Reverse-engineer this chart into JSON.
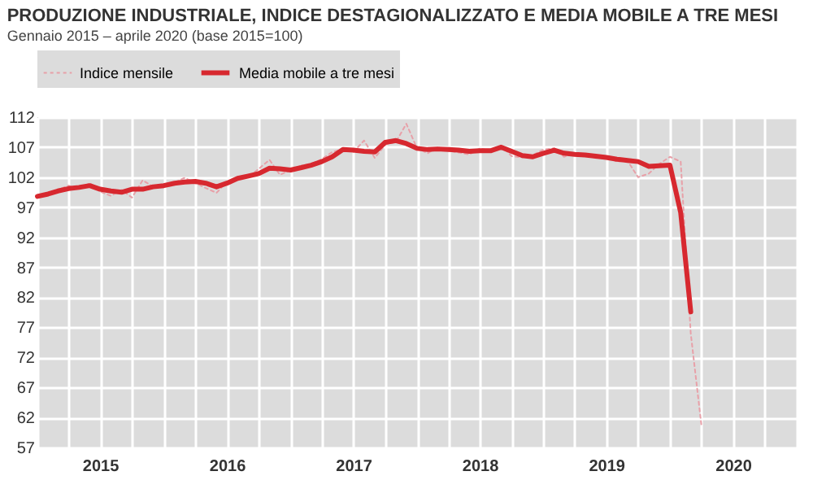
{
  "chart_data": {
    "type": "line",
    "title": "PRODUZIONE INDUSTRIALE, INDICE DESTAGIONALIZZATO E MEDIA MOBILE A TRE MESI",
    "subtitle": "Gennaio 2015 – aprile 2020 (base 2015=100)",
    "x": [
      "2015-01",
      "2015-02",
      "2015-03",
      "2015-04",
      "2015-05",
      "2015-06",
      "2015-07",
      "2015-08",
      "2015-09",
      "2015-10",
      "2015-11",
      "2015-12",
      "2016-01",
      "2016-02",
      "2016-03",
      "2016-04",
      "2016-05",
      "2016-06",
      "2016-07",
      "2016-08",
      "2016-09",
      "2016-10",
      "2016-11",
      "2016-12",
      "2017-01",
      "2017-02",
      "2017-03",
      "2017-04",
      "2017-05",
      "2017-06",
      "2017-07",
      "2017-08",
      "2017-09",
      "2017-10",
      "2017-11",
      "2017-12",
      "2018-01",
      "2018-02",
      "2018-03",
      "2018-04",
      "2018-05",
      "2018-06",
      "2018-07",
      "2018-08",
      "2018-09",
      "2018-10",
      "2018-11",
      "2018-12",
      "2019-01",
      "2019-02",
      "2019-03",
      "2019-04",
      "2019-05",
      "2019-06",
      "2019-07",
      "2019-08",
      "2019-09",
      "2019-10",
      "2019-11",
      "2019-12",
      "2020-01",
      "2020-02",
      "2020-03",
      "2020-04"
    ],
    "series": [
      {
        "name": "Indice mensile",
        "color": "#e8a0a8",
        "line_style": "dotted",
        "values": [
          98.6,
          99.3,
          99.9,
          100.6,
          100.0,
          101.0,
          99.6,
          98.9,
          99.9,
          98.6,
          101.5,
          100.4,
          100.8,
          101.1,
          101.9,
          101.0,
          100.2,
          99.4,
          101.2,
          102.0,
          102.0,
          103.4,
          104.9,
          102.4,
          103.2,
          103.9,
          104.2,
          105.0,
          106.2,
          106.7,
          106.2,
          108.1,
          105.2,
          107.4,
          107.9,
          110.9,
          106.8,
          106.0,
          107.0,
          106.4,
          106.1,
          105.8,
          106.8,
          106.4,
          107.3,
          105.5,
          105.3,
          105.7,
          106.6,
          106.8,
          105.4,
          105.9,
          105.6,
          105.2,
          105.4,
          104.6,
          104.7,
          102.0,
          102.6,
          104.2,
          105.4,
          104.6,
          76.0,
          60.6
        ]
      },
      {
        "name": "Media mobile a tre mesi",
        "color": "#d7282f",
        "line_style": "solid",
        "values": [
          98.8,
          99.2,
          99.7,
          100.1,
          100.3,
          100.6,
          100.0,
          99.7,
          99.5,
          100.0,
          100.0,
          100.4,
          100.6,
          101.0,
          101.2,
          101.3,
          101.0,
          100.4,
          101.0,
          101.8,
          102.2,
          102.6,
          103.5,
          103.4,
          103.2,
          103.6,
          104.0,
          104.6,
          105.4,
          106.6,
          106.5,
          106.3,
          106.2,
          107.8,
          108.1,
          107.6,
          106.8,
          106.6,
          106.7,
          106.6,
          106.5,
          106.3,
          106.4,
          106.4,
          107.0,
          106.3,
          105.6,
          105.4,
          106.0,
          106.5,
          106.0,
          105.8,
          105.7,
          105.5,
          105.3,
          105.0,
          104.8,
          104.6,
          103.8,
          103.9,
          104.0,
          96.1,
          79.6,
          null
        ]
      }
    ],
    "xlim": [
      "2015-01",
      "2021-01"
    ],
    "xticks": [
      {
        "value": "2015-01",
        "label": null
      },
      {
        "value": "2015-04",
        "label": null
      },
      {
        "value": "2015-07",
        "label": "2015"
      },
      {
        "value": "2015-10",
        "label": null
      },
      {
        "value": "2016-01",
        "label": null
      },
      {
        "value": "2016-04",
        "label": null
      },
      {
        "value": "2016-07",
        "label": "2016"
      },
      {
        "value": "2016-10",
        "label": null
      },
      {
        "value": "2017-01",
        "label": null
      },
      {
        "value": "2017-04",
        "label": null
      },
      {
        "value": "2017-07",
        "label": "2017"
      },
      {
        "value": "2017-10",
        "label": null
      },
      {
        "value": "2018-01",
        "label": null
      },
      {
        "value": "2018-04",
        "label": null
      },
      {
        "value": "2018-07",
        "label": "2018"
      },
      {
        "value": "2018-10",
        "label": null
      },
      {
        "value": "2019-01",
        "label": null
      },
      {
        "value": "2019-04",
        "label": null
      },
      {
        "value": "2019-07",
        "label": "2019"
      },
      {
        "value": "2019-10",
        "label": null
      },
      {
        "value": "2020-01",
        "label": null
      },
      {
        "value": "2020-04",
        "label": null
      },
      {
        "value": "2020-07",
        "label": "2020"
      },
      {
        "value": "2020-10",
        "label": null
      },
      {
        "value": "2021-01",
        "label": null
      }
    ],
    "ylim": [
      57,
      112
    ],
    "yticks": [
      57,
      62,
      67,
      72,
      77,
      82,
      87,
      92,
      97,
      102,
      107,
      112
    ],
    "grid": true,
    "legend": "top"
  }
}
